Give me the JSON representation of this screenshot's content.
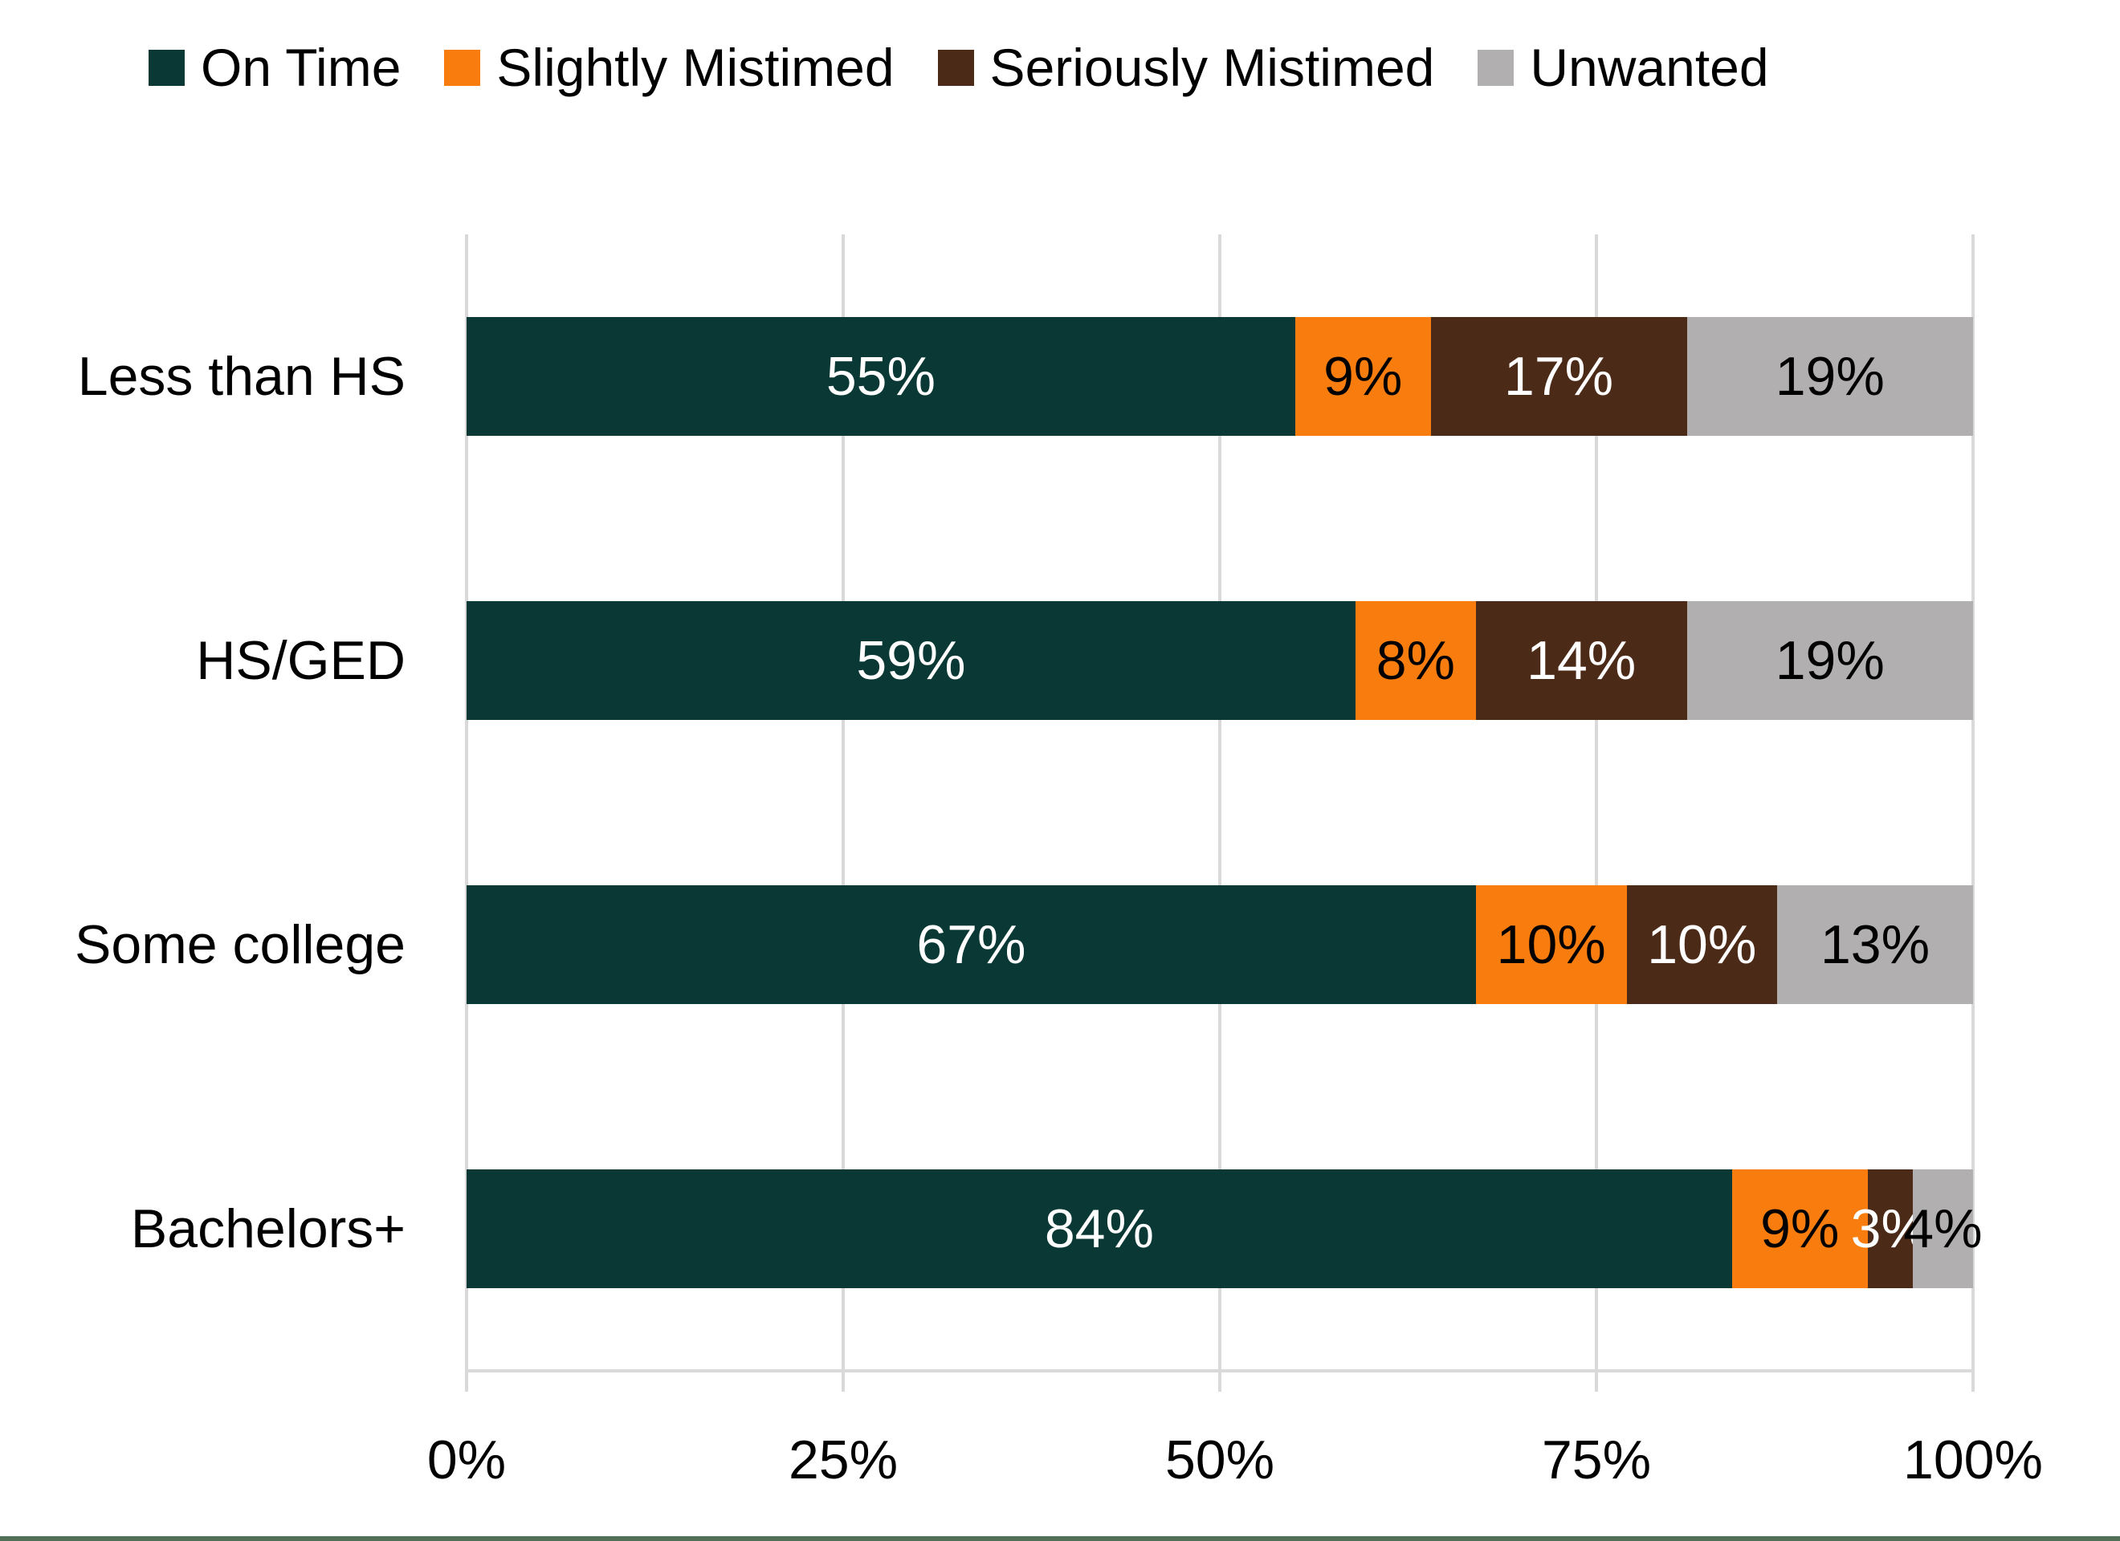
{
  "chart_data": {
    "type": "bar",
    "variant": "stacked-horizontal",
    "title": "",
    "categories": [
      "Less than HS",
      "HS/GED",
      "Some college",
      "Bachelors+"
    ],
    "series": [
      {
        "name": "On Time",
        "color": "#0A3834",
        "label_color": "#FFFFFF",
        "values": [
          55,
          59,
          67,
          84
        ]
      },
      {
        "name": "Slightly Mistimed",
        "color": "#F97D0E",
        "label_color": "#000000",
        "values": [
          9,
          8,
          10,
          9
        ]
      },
      {
        "name": "Seriously Mistimed",
        "color": "#4C2A18",
        "label_color": "#FFFFFF",
        "values": [
          17,
          14,
          10,
          3
        ]
      },
      {
        "name": "Unwanted",
        "color": "#B1AFAF",
        "label_color": "#000000",
        "values": [
          19,
          19,
          13,
          4
        ]
      }
    ],
    "value_suffix": "%",
    "x_axis": {
      "min": 0,
      "max": 100,
      "tick_labels": [
        "0%",
        "25%",
        "50%",
        "75%",
        "100%"
      ]
    },
    "legend_position": "top",
    "grid": "vertical-only",
    "colors": {
      "gridline": "#D9D9D9",
      "axis_line": "#D9D9D9",
      "background": "#FFFFFF",
      "bottom_accent": "#517058"
    }
  }
}
